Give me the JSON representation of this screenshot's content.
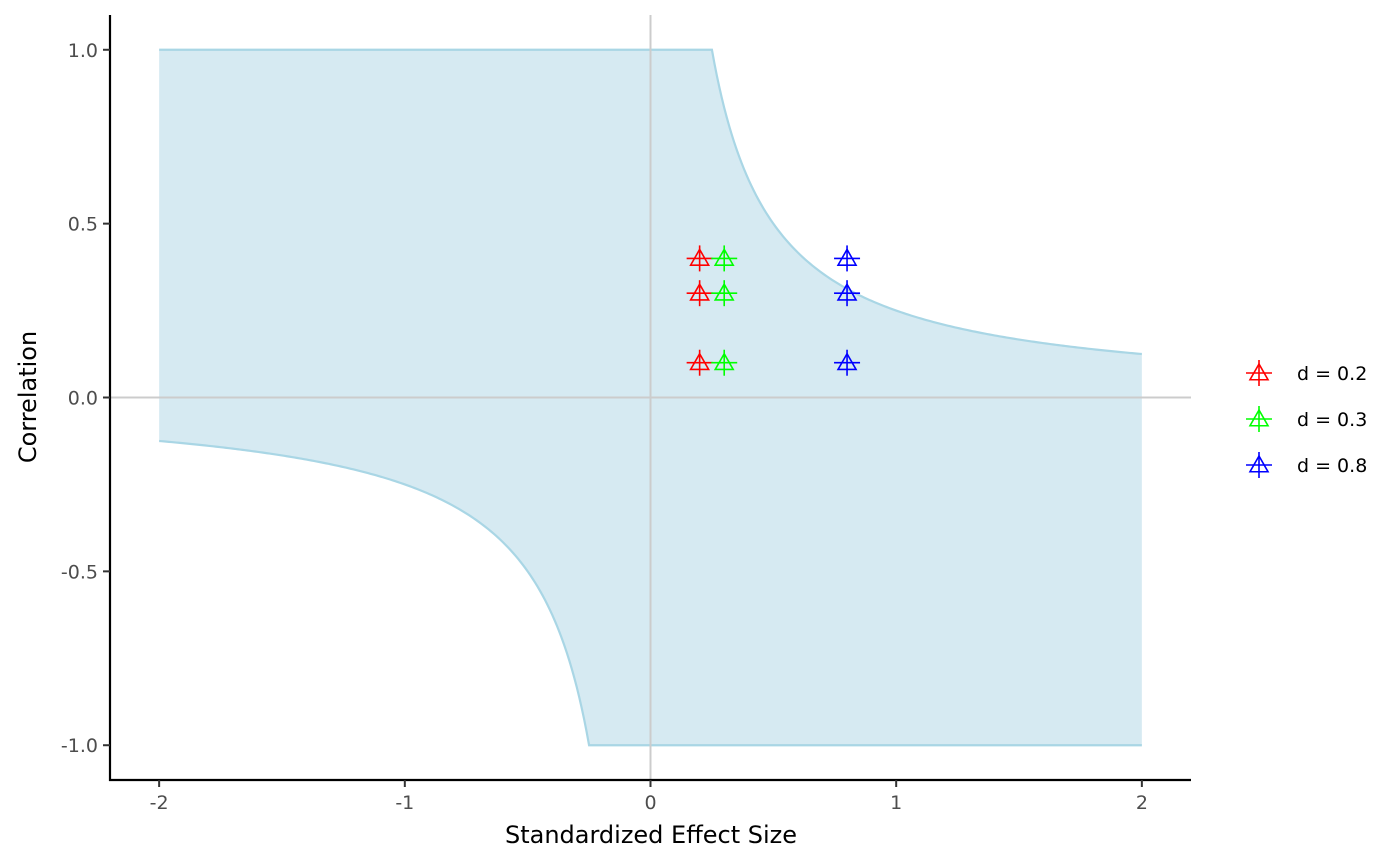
{
  "chart_data": {
    "type": "scatter",
    "title": "",
    "xlabel": "Standardized Effect Size",
    "ylabel": "Correlation",
    "xlim": [
      -2.2,
      2.2
    ],
    "ylim": [
      -1.1,
      1.1
    ],
    "x_ticks": [
      -2,
      -1,
      0,
      1,
      2
    ],
    "x_tick_labels": [
      "-2",
      "-1",
      "0",
      "1",
      "2"
    ],
    "y_ticks": [
      1.0,
      0.5,
      0.0,
      -0.5,
      -1.0
    ],
    "y_tick_labels": [
      "1.0",
      "0.5",
      "0.0",
      "-0.5",
      "-1.0"
    ],
    "grid": false,
    "reference_lines": {
      "x": 0,
      "y": 0,
      "color": "#cccccc"
    },
    "region": {
      "description_type": "shaded-band",
      "fill": "#d6eaf2",
      "stroke": "#a9d6e5",
      "x_range": [
        -2,
        2
      ],
      "boundary_constant": 0.25
    },
    "marker": "triangle-plus",
    "legend_position": "right",
    "series": [
      {
        "name": "d = 0.2",
        "color": "#ff0000",
        "points": [
          {
            "x": 0.2,
            "y": 0.4
          },
          {
            "x": 0.2,
            "y": 0.3
          },
          {
            "x": 0.2,
            "y": 0.1
          }
        ]
      },
      {
        "name": "d = 0.3",
        "color": "#00ff00",
        "points": [
          {
            "x": 0.3,
            "y": 0.4
          },
          {
            "x": 0.3,
            "y": 0.3
          },
          {
            "x": 0.3,
            "y": 0.1
          }
        ]
      },
      {
        "name": "d = 0.8",
        "color": "#0000ff",
        "points": [
          {
            "x": 0.8,
            "y": 0.4
          },
          {
            "x": 0.8,
            "y": 0.3
          },
          {
            "x": 0.8,
            "y": 0.1
          }
        ]
      }
    ]
  }
}
